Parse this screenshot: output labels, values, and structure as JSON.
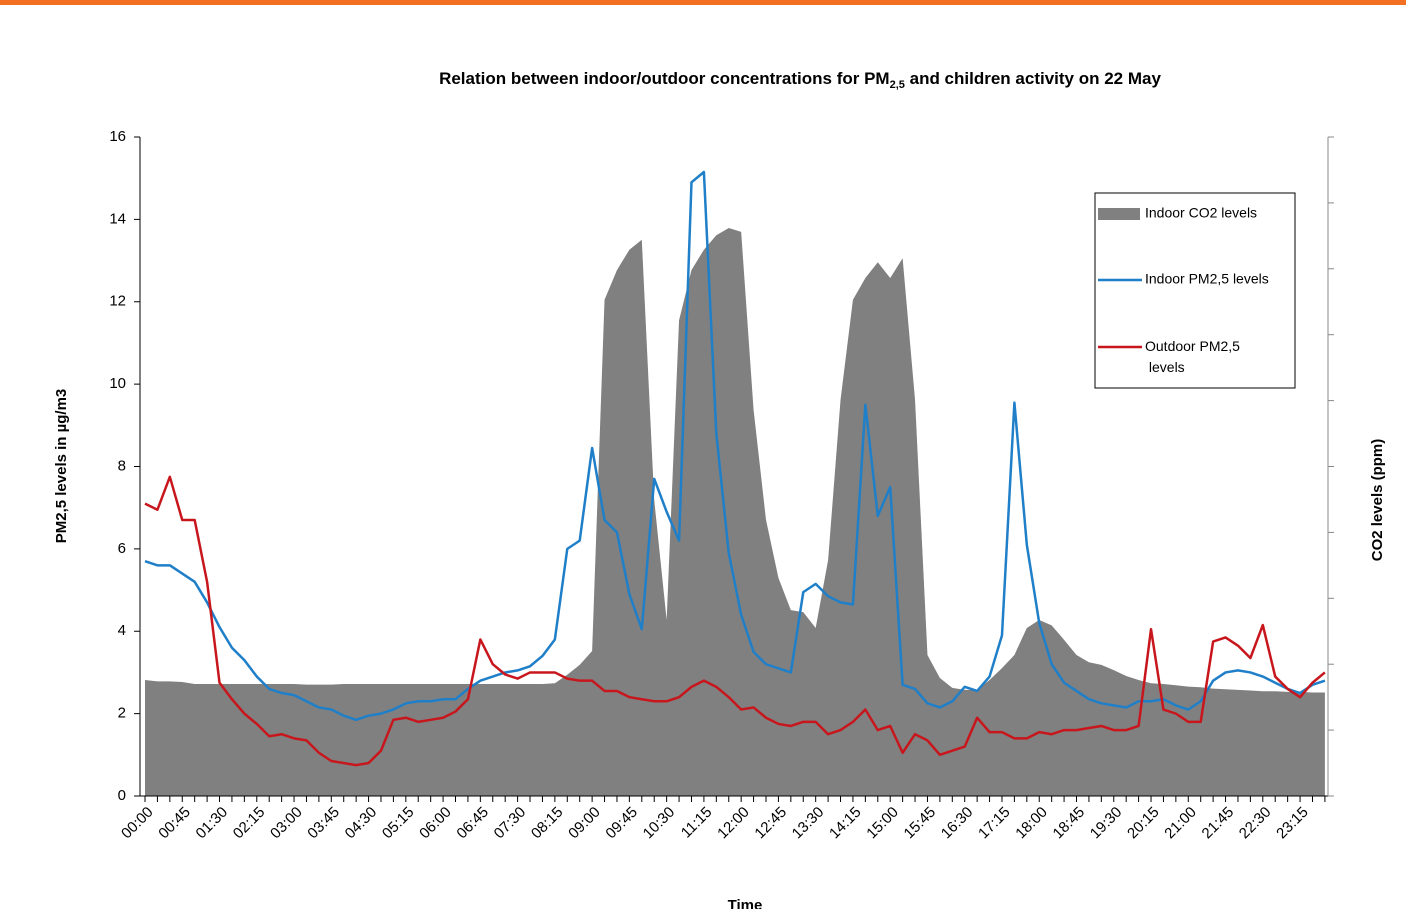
{
  "chart_data": {
    "type": "line",
    "title": [
      "Relation between indoor/outdoor  concentrations for PM",
      "2,5",
      " and children activity on 22 May"
    ],
    "x_label": "Time",
    "y_label": "PM2,5 levels in µg/m3",
    "y2_label": "CO2 levels (ppm)",
    "categories": [
      "00:00",
      null,
      null,
      "00:45",
      null,
      null,
      "01:30",
      null,
      null,
      "02:15",
      null,
      null,
      "03:00",
      null,
      null,
      "03:45",
      null,
      null,
      "04:30",
      null,
      null,
      "05:15",
      null,
      null,
      "06:00",
      null,
      null,
      "06:45",
      null,
      null,
      "07:30",
      null,
      null,
      "08:15",
      null,
      null,
      "09:00",
      null,
      null,
      "09:45",
      null,
      null,
      "10:30",
      null,
      null,
      "11:15",
      null,
      null,
      "12:00",
      null,
      null,
      "12:45",
      null,
      null,
      "13:30",
      null,
      null,
      "14:15",
      null,
      null,
      "15:00",
      null,
      null,
      "15:45",
      null,
      null,
      "16:30",
      null,
      null,
      "17:15",
      null,
      null,
      "18:00",
      null,
      null,
      "18:45",
      null,
      null,
      "19:30",
      null,
      null,
      "20:15",
      null,
      null,
      "21:00",
      null,
      null,
      "21:45",
      null,
      null,
      "22:30",
      null,
      null,
      "23:15",
      null,
      null
    ],
    "ylim": [
      0,
      16
    ],
    "yticks": [
      0,
      2,
      4,
      6,
      8,
      10,
      12,
      14,
      16
    ],
    "y2lim": [
      0,
      10
    ],
    "y2ticks": [
      0,
      1,
      2,
      3,
      4,
      5,
      6,
      7,
      8,
      9,
      10
    ],
    "legend": "upper right",
    "series": [
      {
        "name": "Indoor CO2 levels",
        "type": "area",
        "axis": "y2",
        "color": "#808080",
        "values": [
          1.76,
          1.74,
          1.74,
          1.73,
          1.7,
          1.7,
          1.7,
          1.7,
          1.7,
          1.7,
          1.7,
          1.7,
          1.7,
          1.69,
          1.69,
          1.69,
          1.7,
          1.7,
          1.7,
          1.7,
          1.7,
          1.7,
          1.7,
          1.7,
          1.7,
          1.7,
          1.7,
          1.7,
          1.7,
          1.7,
          1.7,
          1.7,
          1.7,
          1.71,
          1.84,
          1.99,
          2.2,
          7.53,
          7.98,
          8.29,
          8.44,
          4.49,
          2.67,
          7.22,
          7.98,
          8.29,
          8.51,
          8.62,
          8.56,
          5.86,
          4.19,
          3.31,
          2.82,
          2.79,
          2.55,
          3.58,
          6.01,
          7.53,
          7.86,
          8.1,
          7.86,
          8.16,
          6.01,
          2.14,
          1.79,
          1.64,
          1.61,
          1.61,
          1.76,
          1.94,
          2.14,
          2.55,
          2.67,
          2.59,
          2.37,
          2.14,
          2.03,
          1.99,
          1.91,
          1.82,
          1.76,
          1.71,
          1.7,
          1.68,
          1.66,
          1.65,
          1.63,
          1.62,
          1.61,
          1.6,
          1.59,
          1.59,
          1.58,
          1.58,
          1.57,
          1.57
        ]
      },
      {
        "name": "Indoor PM2,5 levels",
        "type": "line",
        "color": "#1f7fc8",
        "values": [
          5.7,
          5.6,
          5.6,
          5.4,
          5.2,
          4.7,
          4.1,
          3.6,
          3.3,
          2.9,
          2.6,
          2.5,
          2.45,
          2.3,
          2.15,
          2.1,
          1.95,
          1.85,
          1.95,
          2.0,
          2.1,
          2.25,
          2.3,
          2.3,
          2.35,
          2.35,
          2.6,
          2.8,
          2.9,
          3.0,
          3.05,
          3.15,
          3.4,
          3.8,
          6.0,
          6.2,
          8.45,
          6.7,
          6.4,
          4.9,
          4.05,
          7.7,
          6.9,
          6.2,
          14.9,
          15.15,
          8.8,
          5.9,
          4.4,
          3.5,
          3.2,
          3.1,
          3.0,
          4.95,
          5.15,
          4.85,
          4.7,
          4.65,
          9.5,
          6.8,
          7.5,
          2.7,
          2.6,
          2.25,
          2.15,
          2.3,
          2.65,
          2.55,
          2.9,
          3.9,
          9.55,
          6.1,
          4.2,
          3.2,
          2.75,
          2.55,
          2.35,
          2.25,
          2.2,
          2.15,
          2.3,
          2.3,
          2.35,
          2.2,
          2.1,
          2.3,
          2.8,
          3.0,
          3.05,
          3.0,
          2.9,
          2.75,
          2.6,
          2.5,
          2.7,
          2.8
        ]
      },
      {
        "name": "Outdoor PM2,5 levels",
        "type": "line",
        "color": "#c8161d",
        "values": [
          7.1,
          6.95,
          7.75,
          6.7,
          6.7,
          5.2,
          2.75,
          2.35,
          2.0,
          1.75,
          1.45,
          1.5,
          1.4,
          1.35,
          1.05,
          0.85,
          0.8,
          0.75,
          0.8,
          1.1,
          1.85,
          1.9,
          1.8,
          1.85,
          1.9,
          2.05,
          2.35,
          3.8,
          3.2,
          2.95,
          2.85,
          3.0,
          3.0,
          3.0,
          2.85,
          2.8,
          2.8,
          2.55,
          2.55,
          2.4,
          2.35,
          2.3,
          2.3,
          2.4,
          2.65,
          2.8,
          2.65,
          2.4,
          2.1,
          2.15,
          1.9,
          1.75,
          1.7,
          1.8,
          1.8,
          1.5,
          1.6,
          1.8,
          2.1,
          1.6,
          1.7,
          1.05,
          1.5,
          1.35,
          1.0,
          1.1,
          1.2,
          1.9,
          1.55,
          1.55,
          1.4,
          1.4,
          1.55,
          1.5,
          1.6,
          1.6,
          1.65,
          1.7,
          1.6,
          1.6,
          1.7,
          4.05,
          2.1,
          2.0,
          1.8,
          1.8,
          3.75,
          3.85,
          3.65,
          3.35,
          4.15,
          2.9,
          2.6,
          2.4,
          2.75,
          3.0
        ]
      }
    ]
  }
}
